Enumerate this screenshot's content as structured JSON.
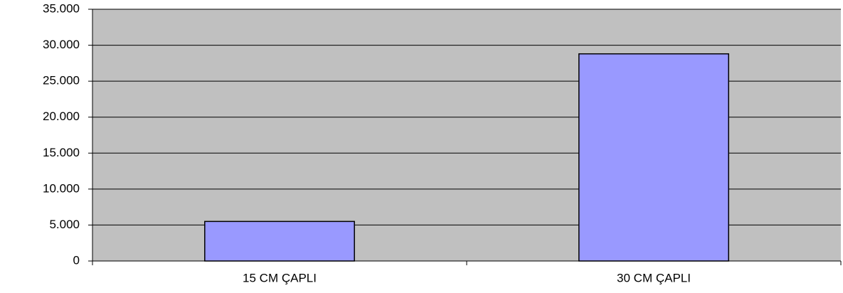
{
  "chart_data": {
    "type": "bar",
    "categories": [
      "15 CM ÇAPLI",
      "30 CM ÇAPLI"
    ],
    "values": [
      5500,
      28800
    ],
    "color": "#9999ff",
    "ylim": [
      0,
      35000
    ],
    "yticks": [
      0,
      {
        "value": 5000,
        "label": "5.000"
      },
      {
        "value": 10000,
        "label": "10.000"
      },
      {
        "value": 15000,
        "label": "15.000"
      },
      {
        "value": 20000,
        "label": "20.000"
      },
      {
        "value": 25000,
        "label": "25.000"
      },
      {
        "value": 30000,
        "label": "30.000"
      },
      {
        "value": 35000,
        "label": "35.000"
      }
    ],
    "grid": true
  }
}
